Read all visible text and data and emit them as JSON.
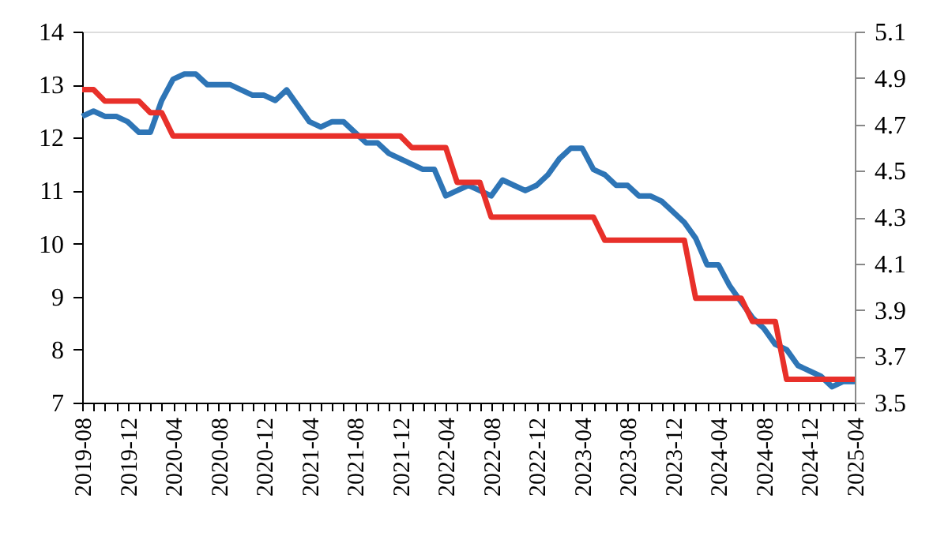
{
  "chart_data": {
    "type": "line",
    "categories": [
      "2019-08",
      null,
      null,
      null,
      "2019-12",
      null,
      null,
      null,
      "2020-04",
      null,
      null,
      null,
      "2020-08",
      null,
      null,
      null,
      "2020-12",
      null,
      null,
      null,
      "2021-04",
      null,
      null,
      null,
      "2021-08",
      null,
      null,
      null,
      "2021-12",
      null,
      null,
      null,
      "2022-04",
      null,
      null,
      null,
      "2022-08",
      null,
      null,
      null,
      "2022-12",
      null,
      null,
      null,
      "2023-04",
      null,
      null,
      null,
      "2023-08",
      null,
      null,
      null,
      "2023-12",
      null,
      null,
      null,
      "2024-04",
      null,
      null,
      null,
      "2024-08",
      null,
      null,
      null,
      "2024-12",
      null,
      null,
      null,
      "2025-04"
    ],
    "series": [
      {
        "color": "#2e75b6",
        "values": [
          12.4,
          12.5,
          12.4,
          12.4,
          12.3,
          12.1,
          12.1,
          12.7,
          13.1,
          13.2,
          13.2,
          13.0,
          13.0,
          13.0,
          12.9,
          12.8,
          12.8,
          12.7,
          12.9,
          12.6,
          12.3,
          12.2,
          12.3,
          12.3,
          12.1,
          11.9,
          11.9,
          11.7,
          11.6,
          11.5,
          11.4,
          11.4,
          10.9,
          11.0,
          11.1,
          11.0,
          10.9,
          11.2,
          11.1,
          11.0,
          11.1,
          11.3,
          11.6,
          11.8,
          11.8,
          11.4,
          11.3,
          11.1,
          11.1,
          10.9,
          10.9,
          10.8,
          10.6,
          10.4,
          10.1,
          9.6,
          9.6,
          9.2,
          8.9,
          8.6,
          8.4,
          8.1,
          8.0,
          7.7,
          7.6,
          7.5,
          7.3,
          7.4,
          7.4
        ]
      },
      {
        "color": "#e8302a",
        "axis": "y2",
        "values": [
          4.85,
          4.85,
          4.8,
          4.8,
          4.8,
          4.8,
          4.75,
          4.75,
          4.65,
          4.65,
          4.65,
          4.65,
          4.65,
          4.65,
          4.65,
          4.65,
          4.65,
          4.65,
          4.65,
          4.65,
          4.65,
          4.65,
          4.65,
          4.65,
          4.65,
          4.65,
          4.65,
          4.65,
          4.65,
          4.6,
          4.6,
          4.6,
          4.6,
          4.45,
          4.45,
          4.45,
          4.3,
          4.3,
          4.3,
          4.3,
          4.3,
          4.3,
          4.3,
          4.3,
          4.3,
          4.3,
          4.2,
          4.2,
          4.2,
          4.2,
          4.2,
          4.2,
          4.2,
          4.2,
          3.95,
          3.95,
          3.95,
          3.95,
          3.95,
          3.85,
          3.85,
          3.85,
          3.6,
          3.6,
          3.6,
          3.6,
          3.6,
          3.6,
          3.6
        ]
      }
    ],
    "ylim": [
      7,
      14
    ],
    "yticks": [
      7,
      8,
      9,
      10,
      11,
      12,
      13,
      14
    ],
    "y2lim": [
      3.5,
      5.1
    ],
    "y2ticks": [
      3.5,
      3.7,
      3.9,
      4.1,
      4.3,
      4.5,
      4.7,
      4.9,
      5.1
    ],
    "grid": false,
    "marker": "none",
    "line_style": "solid"
  }
}
